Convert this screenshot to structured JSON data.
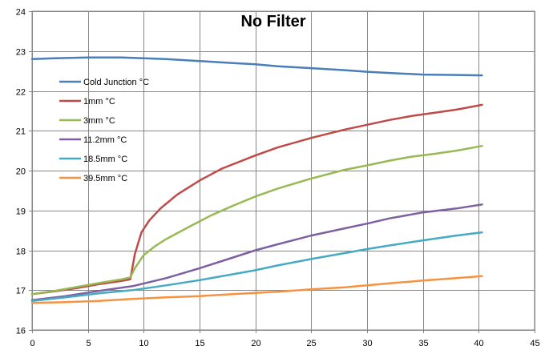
{
  "chart_data": {
    "type": "line",
    "title": "No Filter",
    "xlabel": "",
    "ylabel": "",
    "xlim": [
      0,
      45
    ],
    "ylim": [
      16,
      24
    ],
    "xticks": [
      0,
      5,
      10,
      15,
      20,
      25,
      30,
      35,
      40,
      45
    ],
    "yticks": [
      16,
      17,
      18,
      19,
      20,
      21,
      22,
      23,
      24
    ],
    "grid": true,
    "legend_position": "left, upper-middle",
    "series": [
      {
        "name": "Cold Junction °C",
        "color": "#4A7EBB",
        "x": [
          0,
          2,
          5,
          8,
          10,
          12,
          15,
          18,
          20,
          22,
          25,
          28,
          30,
          32,
          35,
          38,
          40.3
        ],
        "y": [
          22.8,
          22.82,
          22.84,
          22.84,
          22.82,
          22.8,
          22.75,
          22.7,
          22.67,
          22.62,
          22.57,
          22.52,
          22.48,
          22.45,
          22.41,
          22.4,
          22.39
        ]
      },
      {
        "name": "1mm °C",
        "color": "#BE4B48",
        "x": [
          0,
          2,
          4,
          6,
          8,
          8.8,
          9.2,
          9.8,
          10.5,
          11.5,
          13,
          15,
          17,
          20,
          22,
          25,
          28,
          30,
          32,
          34,
          36,
          38,
          40.3
        ],
        "y": [
          16.9,
          16.97,
          17.05,
          17.15,
          17.23,
          17.27,
          17.9,
          18.45,
          18.75,
          19.05,
          19.4,
          19.75,
          20.05,
          20.38,
          20.58,
          20.82,
          21.03,
          21.15,
          21.27,
          21.37,
          21.45,
          21.53,
          21.65
        ]
      },
      {
        "name": "3mm °C",
        "color": "#98B954",
        "x": [
          0,
          2,
          4,
          6,
          8,
          8.8,
          9.2,
          10,
          11,
          12,
          14,
          16,
          18,
          20,
          22,
          25,
          28,
          30,
          32,
          34,
          36,
          38,
          40.3
        ],
        "y": [
          16.9,
          16.98,
          17.08,
          17.18,
          17.27,
          17.32,
          17.55,
          17.88,
          18.1,
          18.28,
          18.58,
          18.87,
          19.12,
          19.35,
          19.55,
          19.8,
          20.02,
          20.13,
          20.25,
          20.35,
          20.42,
          20.5,
          20.62
        ]
      },
      {
        "name": "11.2mm °C",
        "color": "#7D60A0",
        "x": [
          0,
          3,
          6,
          9,
          12,
          15,
          18,
          20,
          22,
          25,
          28,
          30,
          32,
          35,
          38,
          40.3
        ],
        "y": [
          16.75,
          16.85,
          16.98,
          17.1,
          17.3,
          17.55,
          17.82,
          18.0,
          18.15,
          18.37,
          18.55,
          18.67,
          18.8,
          18.95,
          19.05,
          19.15
        ]
      },
      {
        "name": "18.5mm °C",
        "color": "#46AAC5",
        "x": [
          0,
          3,
          6,
          9,
          12,
          15,
          18,
          20,
          22,
          25,
          28,
          30,
          32,
          35,
          38,
          40.3
        ],
        "y": [
          16.73,
          16.82,
          16.92,
          17.0,
          17.12,
          17.25,
          17.4,
          17.5,
          17.62,
          17.78,
          17.93,
          18.03,
          18.12,
          18.25,
          18.37,
          18.45
        ]
      },
      {
        "name": "39.5mm °C",
        "color": "#F69240",
        "x": [
          0,
          3,
          6,
          9,
          12,
          15,
          18,
          20,
          22,
          25,
          28,
          30,
          32,
          35,
          38,
          40.3
        ],
        "y": [
          16.68,
          16.7,
          16.73,
          16.78,
          16.82,
          16.85,
          16.9,
          16.93,
          16.96,
          17.02,
          17.07,
          17.12,
          17.17,
          17.24,
          17.3,
          17.35
        ]
      }
    ]
  }
}
